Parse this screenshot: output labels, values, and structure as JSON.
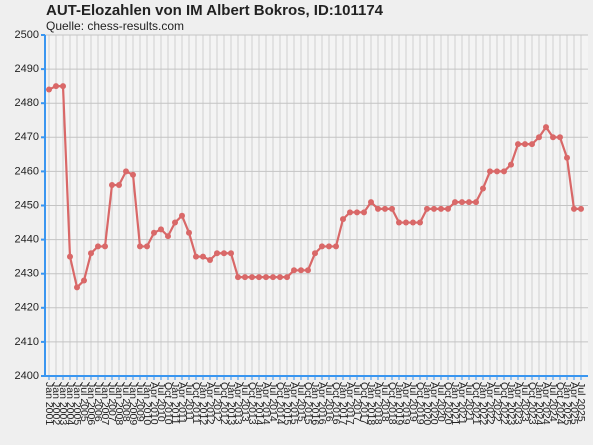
{
  "chart_data": {
    "type": "line",
    "title": "AUT-Elozahlen von IM Albert Bokros, ID:101174",
    "subtitle": "Quelle: chess-results.com",
    "categories": [
      "Jan 2001",
      "Jan 2002",
      "Jan 2003",
      "Jan 2004",
      "Jan 2005",
      "Jul 2005",
      "Jan 2006",
      "Jul 2006",
      "Jan 2007",
      "Jul 2007",
      "Jan 2008",
      "Jul 2008",
      "Jan 2009",
      "Jul 2009",
      "Jan 2010",
      "Apr 2010",
      "Jul 2010",
      "Oct 2010",
      "Jan 2011",
      "Apr 2011",
      "Jul 2011",
      "Oct 2011",
      "Jan 2012",
      "Apr 2012",
      "Jul 2012",
      "Oct 2012",
      "Jan 2013",
      "Apr 2013",
      "Jul 2013",
      "Oct 2013",
      "Jan 2014",
      "Apr 2014",
      "Jul 2014",
      "Oct 2014",
      "Jan 2015",
      "Apr 2015",
      "Jul 2015",
      "Oct 2015",
      "Jan 2016",
      "Apr 2016",
      "Jul 2016",
      "Oct 2016",
      "Jan 2017",
      "Apr 2017",
      "Jul 2017",
      "Oct 2017",
      "Jan 2018",
      "Apr 2018",
      "Jul 2018",
      "Oct 2018",
      "Jan 2019",
      "Apr 2019",
      "Jul 2019",
      "Oct 2019",
      "Jan 2020",
      "Apr 2020",
      "Jul 2020",
      "Oct 2020",
      "Jan 2021",
      "Apr 2021",
      "Jul 2021",
      "Oct 2021",
      "Jan 2022",
      "Apr 2022",
      "Jul 2022",
      "Oct 2022",
      "Jan 2023",
      "Apr 2023",
      "Jul 2023",
      "Oct 2023",
      "Jan 2024",
      "Apr 2024",
      "Jul 2024",
      "Oct 2024",
      "Jan 2025",
      "Apr 2025",
      "Jul 2025"
    ],
    "values": [
      2484,
      2485,
      2485,
      2435,
      2426,
      2428,
      2436,
      2438,
      2438,
      2456,
      2456,
      2460,
      2459,
      2438,
      2438,
      2442,
      2443,
      2441,
      2445,
      2447,
      2442,
      2435,
      2435,
      2434,
      2436,
      2436,
      2436,
      2429,
      2429,
      2429,
      2429,
      2429,
      2429,
      2429,
      2429,
      2431,
      2431,
      2431,
      2436,
      2438,
      2438,
      2438,
      2446,
      2448,
      2448,
      2448,
      2451,
      2449,
      2449,
      2449,
      2445,
      2445,
      2445,
      2445,
      2449,
      2449,
      2449,
      2449,
      2451,
      2451,
      2451,
      2451,
      2455,
      2460,
      2460,
      2460,
      2462,
      2468,
      2468,
      2468,
      2470,
      2473,
      2470,
      2470,
      2464,
      2449,
      2449
    ],
    "color": "#d96868",
    "axis_color": "#3a96f0",
    "ylim": [
      2400,
      2500
    ],
    "yticks": [
      2400,
      2410,
      2420,
      2430,
      2440,
      2450,
      2460,
      2470,
      2480,
      2490,
      2500
    ],
    "grid": true
  }
}
